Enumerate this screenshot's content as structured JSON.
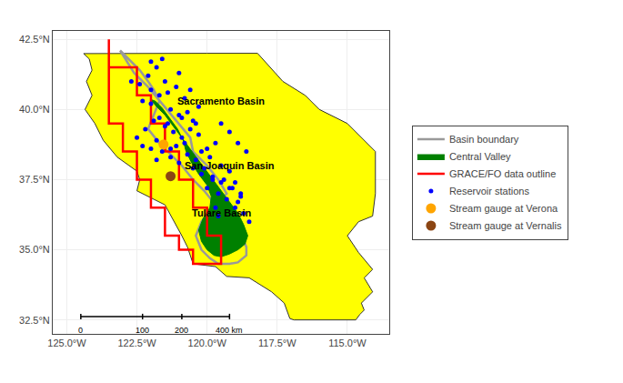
{
  "chart_data": {
    "type": "map",
    "xlim": [
      -125.5,
      -113.5
    ],
    "ylim": [
      32.0,
      42.8
    ],
    "xticks": [
      {
        "value": -125.0,
        "label": "125.0°W"
      },
      {
        "value": -122.5,
        "label": "122.5°W"
      },
      {
        "value": -120.0,
        "label": "120.0°W"
      },
      {
        "value": -117.5,
        "label": "117.5°W"
      },
      {
        "value": -115.0,
        "label": "115.0°W"
      }
    ],
    "yticks": [
      {
        "value": 32.5,
        "label": "32.5°N"
      },
      {
        "value": 35.0,
        "label": "35.0°N"
      },
      {
        "value": 37.5,
        "label": "37.5°N"
      },
      {
        "value": 40.0,
        "label": "40.0°N"
      },
      {
        "value": 42.5,
        "label": "42.5°N"
      }
    ],
    "grid": true,
    "legend": "right",
    "series": [
      {
        "type": "area",
        "color": "#FFFF00",
        "points": [
          [
            -124.4,
            41.99
          ],
          [
            -124.2,
            41.8
          ],
          [
            -124.1,
            41.4
          ],
          [
            -124.3,
            41.0
          ],
          [
            -124.1,
            40.5
          ],
          [
            -124.35,
            40.0
          ],
          [
            -124.0,
            39.5
          ],
          [
            -123.7,
            38.9
          ],
          [
            -123.2,
            38.3
          ],
          [
            -122.5,
            37.8
          ],
          [
            -122.4,
            37.5
          ],
          [
            -122.5,
            37.1
          ],
          [
            -121.9,
            36.8
          ],
          [
            -121.5,
            36.6
          ],
          [
            -120.9,
            35.5
          ],
          [
            -120.7,
            35.1
          ],
          [
            -120.5,
            34.5
          ],
          [
            -120.0,
            34.45
          ],
          [
            -119.7,
            34.4
          ],
          [
            -119.3,
            34.05
          ],
          [
            -118.5,
            34.0
          ],
          [
            -117.7,
            33.5
          ],
          [
            -117.25,
            33.1
          ],
          [
            -117.05,
            32.55
          ],
          [
            -116.9,
            32.5
          ],
          [
            -114.7,
            32.5
          ],
          [
            -114.55,
            32.7
          ],
          [
            -114.4,
            32.85
          ],
          [
            -114.5,
            33.1
          ],
          [
            -114.1,
            33.5
          ],
          [
            -114.4,
            34.0
          ],
          [
            -114.1,
            34.3
          ],
          [
            -114.6,
            34.9
          ],
          [
            -115.0,
            35.5
          ],
          [
            -114.6,
            36.0
          ],
          [
            -114.1,
            36.2
          ],
          [
            -114.0,
            37.0
          ],
          [
            -114.0,
            38.5
          ],
          [
            -114.5,
            39.0
          ],
          [
            -115.0,
            39.5
          ],
          [
            -116.0,
            40.0
          ],
          [
            -116.5,
            40.5
          ],
          [
            -117.3,
            41.0
          ],
          [
            -118.2,
            42.0
          ],
          [
            -120.0,
            42.0
          ],
          [
            -122.0,
            42.0
          ],
          [
            -123.0,
            42.0
          ],
          [
            -124.2,
            42.0
          ],
          [
            -124.4,
            41.99
          ]
        ]
      },
      {
        "name": "Basin boundary",
        "type": "line",
        "color": "#999999",
        "points": [
          [
            -123.1,
            42.1
          ],
          [
            -122.8,
            41.8
          ],
          [
            -122.4,
            41.4
          ],
          [
            -122.1,
            41.0
          ],
          [
            -121.9,
            40.7
          ],
          [
            -121.7,
            40.3
          ],
          [
            -121.9,
            39.8
          ],
          [
            -122.1,
            39.3
          ],
          [
            -121.7,
            38.8
          ],
          [
            -121.3,
            38.4
          ],
          [
            -120.9,
            38.0
          ],
          [
            -120.5,
            37.5
          ],
          [
            -120.1,
            37.1
          ],
          [
            -119.7,
            36.6
          ],
          [
            -119.2,
            36.1
          ],
          [
            -118.8,
            35.6
          ],
          [
            -118.6,
            35.1
          ],
          [
            -118.6,
            34.8
          ],
          [
            -118.9,
            34.55
          ],
          [
            -119.2,
            34.5
          ],
          [
            -119.6,
            34.5
          ],
          [
            -119.9,
            34.7
          ],
          [
            -120.2,
            35.0
          ],
          [
            -120.4,
            35.5
          ],
          [
            -120.2,
            36.0
          ],
          [
            -119.8,
            36.5
          ],
          [
            -119.3,
            37.0
          ],
          [
            -119.6,
            37.5
          ],
          [
            -120.0,
            38.0
          ],
          [
            -120.5,
            38.5
          ],
          [
            -120.6,
            39.0
          ],
          [
            -121.1,
            39.6
          ],
          [
            -121.6,
            40.2
          ],
          [
            -122.1,
            40.8
          ],
          [
            -122.6,
            41.3
          ],
          [
            -123.1,
            42.1
          ]
        ]
      },
      {
        "name": "Central Valley",
        "type": "area",
        "color": "#008000",
        "points": [
          [
            -122.0,
            40.35
          ],
          [
            -121.8,
            40.1
          ],
          [
            -121.5,
            39.8
          ],
          [
            -121.2,
            39.4
          ],
          [
            -121.0,
            39.1
          ],
          [
            -120.7,
            38.7
          ],
          [
            -120.4,
            38.3
          ],
          [
            -120.1,
            37.9
          ],
          [
            -119.8,
            37.5
          ],
          [
            -119.5,
            37.1
          ],
          [
            -119.2,
            36.7
          ],
          [
            -118.9,
            36.3
          ],
          [
            -118.7,
            35.9
          ],
          [
            -118.55,
            35.5
          ],
          [
            -118.65,
            35.2
          ],
          [
            -118.9,
            35.0
          ],
          [
            -119.2,
            34.85
          ],
          [
            -119.5,
            34.75
          ],
          [
            -119.75,
            34.8
          ],
          [
            -120.0,
            35.0
          ],
          [
            -120.2,
            35.3
          ],
          [
            -120.3,
            35.7
          ],
          [
            -120.15,
            36.1
          ],
          [
            -119.9,
            36.5
          ],
          [
            -119.85,
            36.9
          ],
          [
            -120.0,
            37.3
          ],
          [
            -120.3,
            37.7
          ],
          [
            -120.55,
            38.1
          ],
          [
            -120.75,
            38.5
          ],
          [
            -120.85,
            38.9
          ],
          [
            -121.05,
            39.3
          ],
          [
            -121.35,
            39.7
          ],
          [
            -121.6,
            40.05
          ],
          [
            -121.85,
            40.3
          ],
          [
            -122.0,
            40.35
          ]
        ]
      },
      {
        "name": "GRACE/FO data outline",
        "type": "line",
        "color": "#FF0000",
        "points": [
          [
            -123.5,
            42.5
          ],
          [
            -123.5,
            41.5
          ],
          [
            -122.5,
            41.5
          ],
          [
            -122.5,
            40.5
          ],
          [
            -122.0,
            40.5
          ],
          [
            -122.0,
            39.5
          ],
          [
            -121.5,
            39.5
          ],
          [
            -121.5,
            38.5
          ],
          [
            -121.0,
            38.5
          ],
          [
            -121.0,
            37.5
          ],
          [
            -120.5,
            37.5
          ],
          [
            -120.5,
            36.5
          ],
          [
            -120.0,
            36.5
          ],
          [
            -120.0,
            35.5
          ],
          [
            -119.5,
            35.5
          ],
          [
            -119.5,
            34.5
          ],
          [
            -120.5,
            34.5
          ],
          [
            -120.5,
            35.0
          ],
          [
            -121.0,
            35.0
          ],
          [
            -121.0,
            35.5
          ],
          [
            -121.5,
            35.5
          ],
          [
            -121.5,
            36.5
          ],
          [
            -122.0,
            36.5
          ],
          [
            -122.0,
            37.5
          ],
          [
            -122.5,
            37.5
          ],
          [
            -122.5,
            38.5
          ],
          [
            -123.0,
            38.5
          ],
          [
            -123.0,
            39.5
          ],
          [
            -123.5,
            39.5
          ],
          [
            -123.5,
            40.5
          ],
          [
            -123.5,
            40.5
          ],
          [
            -123.5,
            42.5
          ]
        ]
      },
      {
        "name": "Reservoir stations",
        "type": "scatter",
        "color": "#0000FF",
        "points": [
          [
            -122.4,
            40.9
          ],
          [
            -122.1,
            41.2
          ],
          [
            -121.8,
            41.5
          ],
          [
            -122.7,
            41.0
          ],
          [
            -121.5,
            41.0
          ],
          [
            -122.0,
            40.7
          ],
          [
            -121.7,
            40.5
          ],
          [
            -122.3,
            40.3
          ],
          [
            -122.0,
            40.2
          ],
          [
            -121.4,
            40.6
          ],
          [
            -120.8,
            40.4
          ],
          [
            -121.1,
            40.8
          ],
          [
            -121.3,
            40.0
          ],
          [
            -121.0,
            39.8
          ],
          [
            -120.5,
            39.6
          ],
          [
            -120.7,
            39.9
          ],
          [
            -121.5,
            39.4
          ],
          [
            -121.2,
            39.2
          ],
          [
            -120.9,
            39.0
          ],
          [
            -121.8,
            38.9
          ],
          [
            -121.6,
            38.5
          ],
          [
            -121.3,
            38.3
          ],
          [
            -121.0,
            38.1
          ],
          [
            -120.7,
            38.4
          ],
          [
            -120.4,
            38.2
          ],
          [
            -120.2,
            38.5
          ],
          [
            -119.9,
            38.3
          ],
          [
            -120.5,
            37.9
          ],
          [
            -120.2,
            37.7
          ],
          [
            -119.8,
            37.5
          ],
          [
            -120.0,
            37.2
          ],
          [
            -119.6,
            37.0
          ],
          [
            -119.3,
            36.8
          ],
          [
            -119.0,
            36.5
          ],
          [
            -118.7,
            36.3
          ],
          [
            -118.9,
            36.7
          ],
          [
            -119.2,
            37.2
          ],
          [
            -119.5,
            37.4
          ],
          [
            -119.8,
            37.6
          ],
          [
            -120.1,
            37.9
          ],
          [
            -121.9,
            39.6
          ],
          [
            -122.2,
            39.3
          ],
          [
            -121.4,
            39.5
          ],
          [
            -121.7,
            39.7
          ],
          [
            -122.0,
            38.6
          ],
          [
            -121.8,
            38.2
          ],
          [
            -121.1,
            38.7
          ],
          [
            -120.6,
            39.3
          ],
          [
            -120.3,
            39.1
          ],
          [
            -120.8,
            38.8
          ],
          [
            -119.5,
            38.0
          ],
          [
            -119.2,
            37.8
          ],
          [
            -118.8,
            37.0
          ],
          [
            -119.0,
            37.4
          ],
          [
            -119.7,
            36.5
          ],
          [
            -118.5,
            36.0
          ],
          [
            -122.5,
            39.0
          ],
          [
            -122.3,
            38.7
          ],
          [
            -121.0,
            41.3
          ],
          [
            -120.3,
            40.1
          ],
          [
            -120.6,
            40.7
          ],
          [
            -121.6,
            41.8
          ],
          [
            -122.0,
            41.7
          ],
          [
            -119.5,
            39.5
          ],
          [
            -119.2,
            39.2
          ],
          [
            -118.9,
            38.8
          ],
          [
            -118.6,
            38.5
          ],
          [
            -119.7,
            38.8
          ],
          [
            -120.0,
            38.6
          ],
          [
            -120.4,
            39.5
          ],
          [
            -120.9,
            39.7
          ],
          [
            -121.3,
            38.6
          ],
          [
            -119.4,
            37.5
          ],
          [
            -119.1,
            37.2
          ],
          [
            -118.8,
            36.9
          ],
          [
            -119.6,
            36.2
          ]
        ]
      },
      {
        "name": "Stream gauge at Verona",
        "type": "scatter",
        "color": "#FFA500",
        "points": [
          [
            -121.55,
            38.75
          ]
        ]
      },
      {
        "name": "Stream gauge at Vernalis",
        "type": "scatter",
        "color": "#8B4513",
        "points": [
          [
            -121.3,
            37.62
          ]
        ]
      }
    ],
    "annotations": [
      {
        "text": "Sacramento Basin",
        "x": -119.5,
        "y": 40.3
      },
      {
        "text": "San Joaquin Basin",
        "x": -119.2,
        "y": 38.0
      },
      {
        "text": "Tulare Basin",
        "x": -119.5,
        "y": 36.3
      }
    ],
    "scalebar": {
      "y": 32.62,
      "ticks": [
        -124.5,
        -122.3,
        -120.9,
        -119.2
      ],
      "labels": [
        "0",
        "100",
        "200",
        "400 km"
      ],
      "y_tick_top": 32.72,
      "y_tick_bot": 32.52,
      "y_label": 32.35
    }
  }
}
